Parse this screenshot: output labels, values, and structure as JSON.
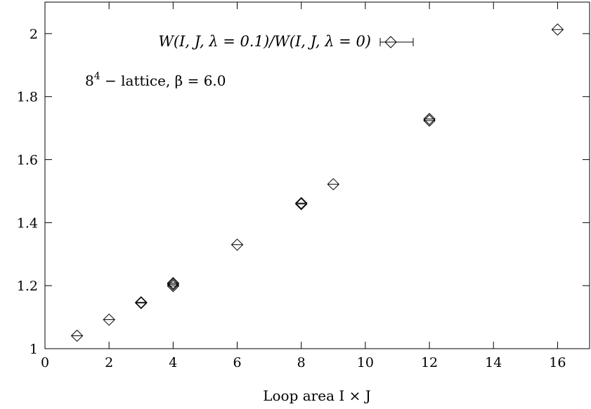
{
  "chart_data": {
    "type": "scatter",
    "xlabel": "Loop area I × J",
    "ylabel": "",
    "xlim": [
      0,
      17
    ],
    "ylim": [
      1.0,
      2.1
    ],
    "x_ticks": [
      0,
      2,
      4,
      6,
      8,
      10,
      12,
      14,
      16
    ],
    "y_ticks": [
      1.0,
      1.2,
      1.4,
      1.6,
      1.8,
      2.0
    ],
    "x_tick_labels": [
      "0",
      "2",
      "4",
      "6",
      "8",
      "10",
      "12",
      "14",
      "16"
    ],
    "y_tick_labels": [
      "1",
      "1.2",
      "1.4",
      "1.6",
      "1.8",
      "2"
    ],
    "grid": false,
    "legend_position": "top-left",
    "series": [
      {
        "name": "W(I, J, λ = 0.1)/W(I, J, λ = 0)",
        "marker": "diamond",
        "points": [
          {
            "x": 1,
            "y": 1.041
          },
          {
            "x": 2,
            "y": 1.092
          },
          {
            "x": 3,
            "y": 1.145
          },
          {
            "x": 3,
            "y": 1.147
          },
          {
            "x": 4,
            "y": 1.199
          },
          {
            "x": 4,
            "y": 1.204
          },
          {
            "x": 4,
            "y": 1.208
          },
          {
            "x": 6,
            "y": 1.33
          },
          {
            "x": 8,
            "y": 1.459
          },
          {
            "x": 8,
            "y": 1.462
          },
          {
            "x": 9,
            "y": 1.522
          },
          {
            "x": 12,
            "y": 1.724
          },
          {
            "x": 12,
            "y": 1.729
          },
          {
            "x": 16,
            "y": 2.013
          }
        ]
      }
    ],
    "annotation_parts": {
      "base": "8",
      "sup": "4",
      "rest": " − lattice,  β = 6.0"
    }
  }
}
